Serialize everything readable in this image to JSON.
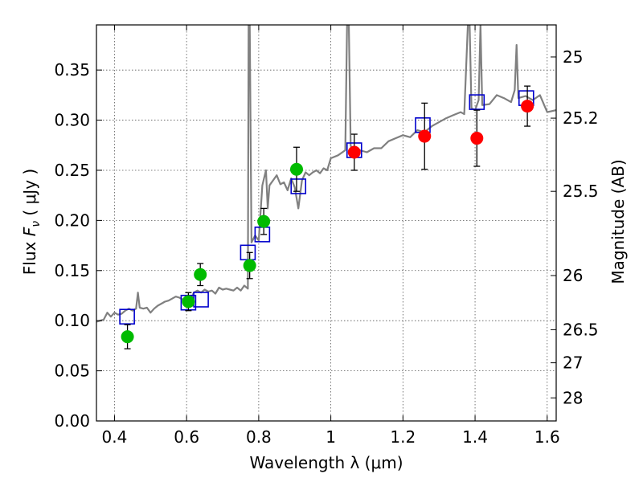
{
  "chart_data": {
    "type": "scatter",
    "xlabel": "Wavelength  λ (μm)",
    "ylabel_prefix": "Flux ",
    "ylabel_symbol": "F",
    "ylabel_sub": "ν",
    "ylabel_suffix": "  ( μJy )",
    "y2label": "Magnitude (AB)",
    "xlim": [
      0.35,
      1.625
    ],
    "ylim": [
      0.0,
      0.395
    ],
    "grid": true,
    "x_ticks": [
      0.4,
      0.6,
      0.8,
      1.0,
      1.2,
      1.4,
      1.6
    ],
    "x_tick_labels": [
      "0.4",
      "0.6",
      "0.8",
      "1",
      "1.2",
      "1.4",
      "1.6"
    ],
    "y_ticks": [
      0.0,
      0.05,
      0.1,
      0.15,
      0.2,
      0.25,
      0.3,
      0.35
    ],
    "y_tick_labels": [
      "0.00",
      "0.05",
      "0.10",
      "0.15",
      "0.20",
      "0.25",
      "0.30",
      "0.35"
    ],
    "y2_ticks": [
      {
        "label": "25",
        "flux": 0.363
      },
      {
        "label": "25.2",
        "flux": 0.302
      },
      {
        "label": "25.5",
        "flux": 0.229
      },
      {
        "label": "26",
        "flux": 0.145
      },
      {
        "label": "26.5",
        "flux": 0.091
      },
      {
        "label": "27",
        "flux": 0.058
      },
      {
        "label": "28",
        "flux": 0.023
      }
    ],
    "colors": {
      "model": "#808080",
      "green": "#00bb00",
      "red": "#ff0000",
      "square": "#0000cc",
      "grid": "#555555"
    },
    "series": [
      {
        "kind": "model_spectrum",
        "x": [
          0.35,
          0.37,
          0.38,
          0.39,
          0.4,
          0.41,
          0.42,
          0.43,
          0.44,
          0.45,
          0.46,
          0.465,
          0.47,
          0.48,
          0.49,
          0.5,
          0.51,
          0.52,
          0.53,
          0.54,
          0.55,
          0.56,
          0.57,
          0.58,
          0.59,
          0.6,
          0.61,
          0.62,
          0.63,
          0.64,
          0.65,
          0.66,
          0.67,
          0.68,
          0.69,
          0.7,
          0.71,
          0.72,
          0.73,
          0.74,
          0.75,
          0.76,
          0.77,
          0.772,
          0.775,
          0.78,
          0.79,
          0.8,
          0.81,
          0.82,
          0.825,
          0.83,
          0.84,
          0.85,
          0.86,
          0.87,
          0.88,
          0.89,
          0.9,
          0.91,
          0.92,
          0.93,
          0.94,
          0.95,
          0.96,
          0.97,
          0.98,
          0.99,
          1.0,
          1.02,
          1.04,
          1.045,
          1.05,
          1.055,
          1.06,
          1.08,
          1.1,
          1.12,
          1.14,
          1.16,
          1.18,
          1.2,
          1.22,
          1.24,
          1.26,
          1.28,
          1.3,
          1.32,
          1.34,
          1.36,
          1.37,
          1.38,
          1.385,
          1.39,
          1.4,
          1.41,
          1.415,
          1.42,
          1.44,
          1.46,
          1.48,
          1.5,
          1.51,
          1.515,
          1.52,
          1.54,
          1.56,
          1.58,
          1.6,
          1.625
        ],
        "y": [
          0.099,
          0.101,
          0.108,
          0.104,
          0.108,
          0.106,
          0.107,
          0.11,
          0.112,
          0.11,
          0.112,
          0.128,
          0.113,
          0.112,
          0.113,
          0.108,
          0.112,
          0.115,
          0.117,
          0.119,
          0.12,
          0.122,
          0.124,
          0.123,
          0.121,
          0.122,
          0.12,
          0.128,
          0.13,
          0.128,
          0.131,
          0.129,
          0.13,
          0.127,
          0.133,
          0.131,
          0.132,
          0.131,
          0.13,
          0.133,
          0.13,
          0.135,
          0.132,
          0.395,
          0.395,
          0.178,
          0.185,
          0.18,
          0.235,
          0.25,
          0.212,
          0.235,
          0.24,
          0.245,
          0.236,
          0.238,
          0.23,
          0.242,
          0.233,
          0.212,
          0.24,
          0.248,
          0.245,
          0.248,
          0.25,
          0.247,
          0.252,
          0.25,
          0.262,
          0.265,
          0.27,
          0.395,
          0.395,
          0.275,
          0.268,
          0.27,
          0.268,
          0.272,
          0.272,
          0.279,
          0.282,
          0.285,
          0.283,
          0.29,
          0.288,
          0.294,
          0.298,
          0.302,
          0.305,
          0.308,
          0.306,
          0.395,
          0.395,
          0.312,
          0.31,
          0.32,
          0.395,
          0.315,
          0.316,
          0.325,
          0.322,
          0.318,
          0.33,
          0.375,
          0.322,
          0.324,
          0.32,
          0.325,
          0.308,
          0.31
        ]
      },
      {
        "kind": "green_points",
        "x": [
          0.436,
          0.605,
          0.638,
          0.775,
          0.814,
          0.905
        ],
        "y": [
          0.084,
          0.119,
          0.146,
          0.155,
          0.199,
          0.251
        ],
        "yerr": [
          0.012,
          0.009,
          0.011,
          0.013,
          0.013,
          0.022
        ]
      },
      {
        "kind": "red_points",
        "x": [
          1.065,
          1.26,
          1.405,
          1.545
        ],
        "y": [
          0.268,
          0.284,
          0.282,
          0.314
        ],
        "yerr": [
          0.018,
          0.033,
          0.028,
          0.02
        ]
      },
      {
        "kind": "model_squares",
        "x": [
          0.435,
          0.605,
          0.64,
          0.77,
          0.81,
          0.91,
          1.065,
          1.255,
          1.405,
          1.542
        ],
        "y": [
          0.104,
          0.118,
          0.121,
          0.168,
          0.186,
          0.234,
          0.27,
          0.295,
          0.318,
          0.322
        ]
      }
    ]
  }
}
